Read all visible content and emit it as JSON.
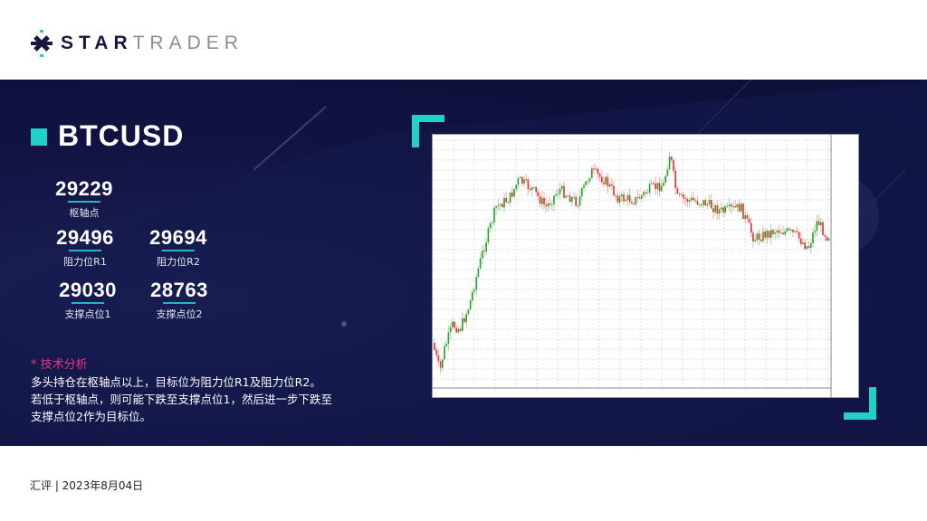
{
  "brand": {
    "name_bold": "STAR",
    "name_light": "TRADER"
  },
  "symbol": "BTCUSD",
  "levels": {
    "pivot": {
      "value": "29229",
      "label": "枢轴点"
    },
    "r1": {
      "value": "29496",
      "label": "阻力位R1"
    },
    "r2": {
      "value": "29694",
      "label": "阻力位R2"
    },
    "s1": {
      "value": "29030",
      "label": "支撑点位1"
    },
    "s2": {
      "value": "28763",
      "label": "支撑点位2"
    }
  },
  "analysis": {
    "title": "* 技术分析",
    "lines": [
      "多头持仓在枢轴点以上，目标位为阻力位R1及阻力位R2。",
      "若低于枢轴点，则可能下跌至支撑点位1，然后进一步下跌至",
      "支撑点位2作为目标位。"
    ]
  },
  "footer": "汇评 | 2023年8月04日",
  "colors": {
    "accent": "#1fd1c8",
    "highlight": "#f0317e",
    "background": "#101240",
    "bull": "#1fa22a",
    "bear": "#f02828"
  }
}
